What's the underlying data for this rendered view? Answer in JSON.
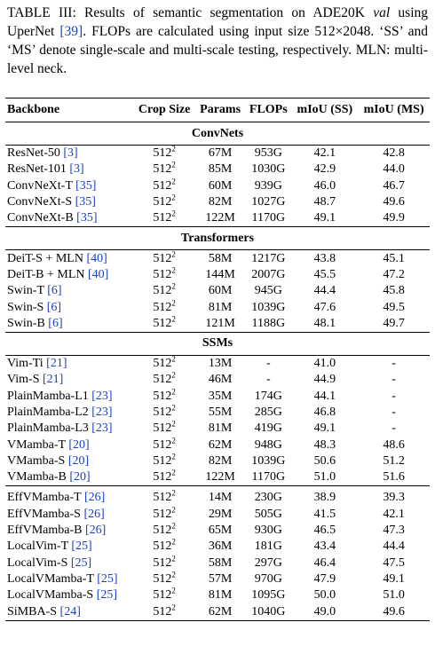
{
  "caption": {
    "label": "TABLE III:",
    "segments": [
      "Results of semantic segmentation on ADE20K",
      "val",
      "using UperNet",
      "[39]",
      ". FLOPs are calculated using input size 512×2048. ‘SS’ and ‘MS’ denote single-scale and multi-scale testing, respectively. MLN: multi-level neck."
    ]
  },
  "table": {
    "header": [
      "Backbone",
      "Crop Size",
      "Params",
      "FLOPs",
      "mIoU (SS)",
      "mIoU (MS)"
    ],
    "groups": [
      {
        "title": "ConvNets",
        "rows": [
          {
            "backbone": "ResNet-50",
            "ref": "[3]",
            "crop": [
              "512",
              "2"
            ],
            "params": "67M",
            "flops": "953G",
            "ss": "42.1",
            "ms": "42.8"
          },
          {
            "backbone": "ResNet-101",
            "ref": "[3]",
            "crop": [
              "512",
              "2"
            ],
            "params": "85M",
            "flops": "1030G",
            "ss": "42.9",
            "ms": "44.0"
          },
          {
            "backbone": "ConvNeXt-T",
            "ref": "[35]",
            "crop": [
              "512",
              "2"
            ],
            "params": "60M",
            "flops": "939G",
            "ss": "46.0",
            "ms": "46.7"
          },
          {
            "backbone": "ConvNeXt-S",
            "ref": "[35]",
            "crop": [
              "512",
              "2"
            ],
            "params": "82M",
            "flops": "1027G",
            "ss": "48.7",
            "ms": "49.6"
          },
          {
            "backbone": "ConvNeXt-B",
            "ref": "[35]",
            "crop": [
              "512",
              "2"
            ],
            "params": "122M",
            "flops": "1170G",
            "ss": "49.1",
            "ms": "49.9"
          }
        ]
      },
      {
        "title": "Transformers",
        "rows": [
          {
            "backbone": "DeiT-S + MLN",
            "ref": "[40]",
            "crop": [
              "512",
              "2"
            ],
            "params": "58M",
            "flops": "1217G",
            "ss": "43.8",
            "ms": "45.1"
          },
          {
            "backbone": "DeiT-B + MLN",
            "ref": "[40]",
            "crop": [
              "512",
              "2"
            ],
            "params": "144M",
            "flops": "2007G",
            "ss": "45.5",
            "ms": "47.2"
          },
          {
            "backbone": "Swin-T",
            "ref": "[6]",
            "crop": [
              "512",
              "2"
            ],
            "params": "60M",
            "flops": "945G",
            "ss": "44.4",
            "ms": "45.8"
          },
          {
            "backbone": "Swin-S",
            "ref": "[6]",
            "crop": [
              "512",
              "2"
            ],
            "params": "81M",
            "flops": "1039G",
            "ss": "47.6",
            "ms": "49.5"
          },
          {
            "backbone": "Swin-B",
            "ref": "[6]",
            "crop": [
              "512",
              "2"
            ],
            "params": "121M",
            "flops": "1188G",
            "ss": "48.1",
            "ms": "49.7"
          }
        ]
      },
      {
        "title": "SSMs",
        "rows": [
          {
            "backbone": "Vim-Ti",
            "ref": "[21]",
            "crop": [
              "512",
              "2"
            ],
            "params": "13M",
            "flops": "-",
            "ss": "41.0",
            "ms": "-"
          },
          {
            "backbone": "Vim-S",
            "ref": "[21]",
            "crop": [
              "512",
              "2"
            ],
            "params": "46M",
            "flops": "-",
            "ss": "44.9",
            "ms": "-"
          },
          {
            "backbone": "PlainMamba-L1",
            "ref": "[23]",
            "crop": [
              "512",
              "2"
            ],
            "params": "35M",
            "flops": "174G",
            "ss": "44.1",
            "ms": "-"
          },
          {
            "backbone": "PlainMamba-L2",
            "ref": "[23]",
            "crop": [
              "512",
              "2"
            ],
            "params": "55M",
            "flops": "285G",
            "ss": "46.8",
            "ms": "-"
          },
          {
            "backbone": "PlainMamba-L3",
            "ref": "[23]",
            "crop": [
              "512",
              "2"
            ],
            "params": "81M",
            "flops": "419G",
            "ss": "49.1",
            "ms": "-"
          },
          {
            "backbone": "VMamba-T",
            "ref": "[20]",
            "crop": [
              "512",
              "2"
            ],
            "params": "62M",
            "flops": "948G",
            "ss": "48.3",
            "ms": "48.6"
          },
          {
            "backbone": "VMamba-S",
            "ref": "[20]",
            "crop": [
              "512",
              "2"
            ],
            "params": "82M",
            "flops": "1039G",
            "ss": "50.6",
            "ms": "51.2"
          },
          {
            "backbone": "VMamba-B",
            "ref": "[20]",
            "crop": [
              "512",
              "2"
            ],
            "params": "122M",
            "flops": "1170G",
            "ss": "51.0",
            "ms": "51.6"
          }
        ]
      },
      {
        "rows": [
          {
            "backbone": "EffVMamba-T",
            "ref": "[26]",
            "crop": [
              "512",
              "2"
            ],
            "params": "14M",
            "flops": "230G",
            "ss": "38.9",
            "ms": "39.3"
          },
          {
            "backbone": "EffVMamba-S",
            "ref": "[26]",
            "crop": [
              "512",
              "2"
            ],
            "params": "29M",
            "flops": "505G",
            "ss": "41.5",
            "ms": "42.1"
          },
          {
            "backbone": "EffVMamba-B",
            "ref": "[26]",
            "crop": [
              "512",
              "2"
            ],
            "params": "65M",
            "flops": "930G",
            "ss": "46.5",
            "ms": "47.3"
          },
          {
            "backbone": "LocalVim-T",
            "ref": "[25]",
            "crop": [
              "512",
              "2"
            ],
            "params": "36M",
            "flops": "181G",
            "ss": "43.4",
            "ms": "44.4"
          },
          {
            "backbone": "LocalVim-S",
            "ref": "[25]",
            "crop": [
              "512",
              "2"
            ],
            "params": "58M",
            "flops": "297G",
            "ss": "46.4",
            "ms": "47.5"
          },
          {
            "backbone": "LocalVMamba-T",
            "ref": "[25]",
            "crop": [
              "512",
              "2"
            ],
            "params": "57M",
            "flops": "970G",
            "ss": "47.9",
            "ms": "49.1"
          },
          {
            "backbone": "LocalVMamba-S",
            "ref": "[25]",
            "crop": [
              "512",
              "2"
            ],
            "params": "81M",
            "flops": "1095G",
            "ss": "50.0",
            "ms": "51.0"
          },
          {
            "backbone": "SiMBA-S",
            "ref": "[24]",
            "crop": [
              "512",
              "2"
            ],
            "params": "62M",
            "flops": "1040G",
            "ss": "49.0",
            "ms": "49.6"
          }
        ]
      }
    ]
  }
}
